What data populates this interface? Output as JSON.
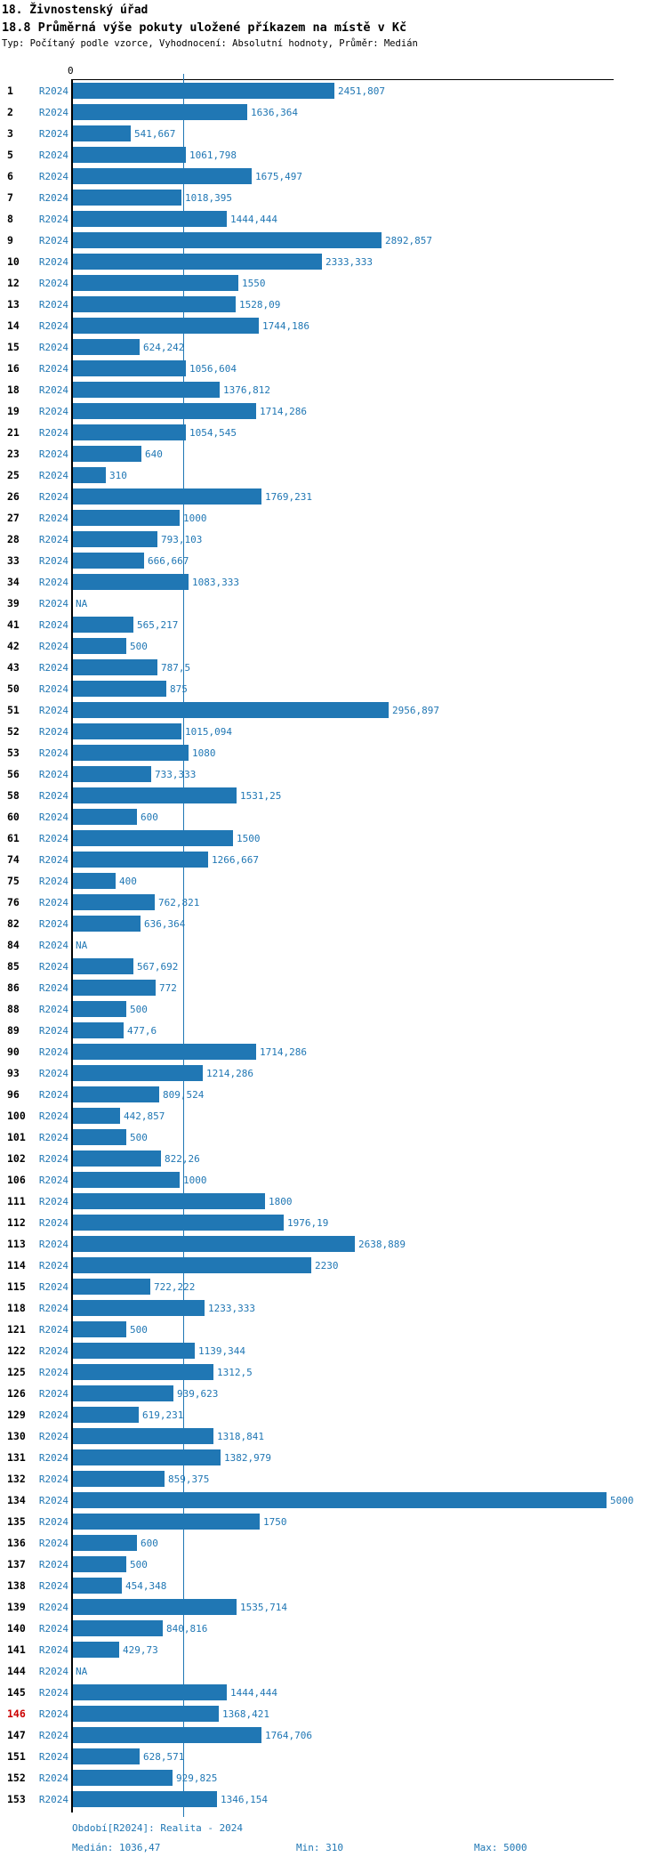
{
  "header": {
    "title": "18. Živnostenský úřad",
    "subtitle": "18.8 Průměrná výše pokuty uložené příkazem na místě v Kč",
    "meta": "Typ: Počítaný podle vzorce, Vyhodnocení: Absolutní hodnoty, Průměr: Medián"
  },
  "chart_data": {
    "type": "bar",
    "orientation": "horizontal",
    "title": "18.8 Průměrná výše pokuty uložené příkazem na místě v Kč",
    "series_label": "R2024",
    "axis_zero_label": "0",
    "na_label": "NA",
    "xlim": [
      0,
      5000
    ],
    "median": 1036.47,
    "min": 310,
    "max": 5000,
    "period": "Realita - 2024",
    "bar_color": "#2077b4",
    "highlight_color": "#cc0000",
    "rows": [
      {
        "id": "1",
        "value": 2451.807,
        "label": "2451,807"
      },
      {
        "id": "2",
        "value": 1636.364,
        "label": "1636,364"
      },
      {
        "id": "3",
        "value": 541.667,
        "label": "541,667"
      },
      {
        "id": "5",
        "value": 1061.798,
        "label": "1061,798"
      },
      {
        "id": "6",
        "value": 1675.497,
        "label": "1675,497"
      },
      {
        "id": "7",
        "value": 1018.395,
        "label": "1018,395"
      },
      {
        "id": "8",
        "value": 1444.444,
        "label": "1444,444"
      },
      {
        "id": "9",
        "value": 2892.857,
        "label": "2892,857"
      },
      {
        "id": "10",
        "value": 2333.333,
        "label": "2333,333"
      },
      {
        "id": "12",
        "value": 1550,
        "label": "1550"
      },
      {
        "id": "13",
        "value": 1528.09,
        "label": "1528,09"
      },
      {
        "id": "14",
        "value": 1744.186,
        "label": "1744,186"
      },
      {
        "id": "15",
        "value": 624.242,
        "label": "624,242"
      },
      {
        "id": "16",
        "value": 1056.604,
        "label": "1056,604"
      },
      {
        "id": "18",
        "value": 1376.812,
        "label": "1376,812"
      },
      {
        "id": "19",
        "value": 1714.286,
        "label": "1714,286"
      },
      {
        "id": "21",
        "value": 1054.545,
        "label": "1054,545"
      },
      {
        "id": "23",
        "value": 640,
        "label": "640"
      },
      {
        "id": "25",
        "value": 310,
        "label": "310"
      },
      {
        "id": "26",
        "value": 1769.231,
        "label": "1769,231"
      },
      {
        "id": "27",
        "value": 1000,
        "label": "1000"
      },
      {
        "id": "28",
        "value": 793.103,
        "label": "793,103"
      },
      {
        "id": "33",
        "value": 666.667,
        "label": "666,667"
      },
      {
        "id": "34",
        "value": 1083.333,
        "label": "1083,333"
      },
      {
        "id": "39",
        "value": null,
        "label": "NA"
      },
      {
        "id": "41",
        "value": 565.217,
        "label": "565,217"
      },
      {
        "id": "42",
        "value": 500,
        "label": "500"
      },
      {
        "id": "43",
        "value": 787.5,
        "label": "787,5"
      },
      {
        "id": "50",
        "value": 875,
        "label": "875"
      },
      {
        "id": "51",
        "value": 2956.897,
        "label": "2956,897"
      },
      {
        "id": "52",
        "value": 1015.094,
        "label": "1015,094"
      },
      {
        "id": "53",
        "value": 1080,
        "label": "1080"
      },
      {
        "id": "56",
        "value": 733.333,
        "label": "733,333"
      },
      {
        "id": "58",
        "value": 1531.25,
        "label": "1531,25"
      },
      {
        "id": "60",
        "value": 600,
        "label": "600"
      },
      {
        "id": "61",
        "value": 1500,
        "label": "1500"
      },
      {
        "id": "74",
        "value": 1266.667,
        "label": "1266,667"
      },
      {
        "id": "75",
        "value": 400,
        "label": "400"
      },
      {
        "id": "76",
        "value": 762.821,
        "label": "762,821"
      },
      {
        "id": "82",
        "value": 636.364,
        "label": "636,364"
      },
      {
        "id": "84",
        "value": null,
        "label": "NA"
      },
      {
        "id": "85",
        "value": 567.692,
        "label": "567,692"
      },
      {
        "id": "86",
        "value": 772,
        "label": "772"
      },
      {
        "id": "88",
        "value": 500,
        "label": "500"
      },
      {
        "id": "89",
        "value": 477.6,
        "label": "477,6"
      },
      {
        "id": "90",
        "value": 1714.286,
        "label": "1714,286"
      },
      {
        "id": "93",
        "value": 1214.286,
        "label": "1214,286"
      },
      {
        "id": "96",
        "value": 809.524,
        "label": "809,524"
      },
      {
        "id": "100",
        "value": 442.857,
        "label": "442,857"
      },
      {
        "id": "101",
        "value": 500,
        "label": "500"
      },
      {
        "id": "102",
        "value": 822.26,
        "label": "822,26"
      },
      {
        "id": "106",
        "value": 1000,
        "label": "1000"
      },
      {
        "id": "111",
        "value": 1800,
        "label": "1800"
      },
      {
        "id": "112",
        "value": 1976.19,
        "label": "1976,19"
      },
      {
        "id": "113",
        "value": 2638.889,
        "label": "2638,889"
      },
      {
        "id": "114",
        "value": 2230,
        "label": "2230"
      },
      {
        "id": "115",
        "value": 722.222,
        "label": "722,222"
      },
      {
        "id": "118",
        "value": 1233.333,
        "label": "1233,333"
      },
      {
        "id": "121",
        "value": 500,
        "label": "500"
      },
      {
        "id": "122",
        "value": 1139.344,
        "label": "1139,344"
      },
      {
        "id": "125",
        "value": 1312.5,
        "label": "1312,5"
      },
      {
        "id": "126",
        "value": 939.623,
        "label": "939,623"
      },
      {
        "id": "129",
        "value": 619.231,
        "label": "619,231"
      },
      {
        "id": "130",
        "value": 1318.841,
        "label": "1318,841"
      },
      {
        "id": "131",
        "value": 1382.979,
        "label": "1382,979"
      },
      {
        "id": "132",
        "value": 859.375,
        "label": "859,375"
      },
      {
        "id": "134",
        "value": 5000,
        "label": "5000"
      },
      {
        "id": "135",
        "value": 1750,
        "label": "1750"
      },
      {
        "id": "136",
        "value": 600,
        "label": "600"
      },
      {
        "id": "137",
        "value": 500,
        "label": "500"
      },
      {
        "id": "138",
        "value": 454.348,
        "label": "454,348"
      },
      {
        "id": "139",
        "value": 1535.714,
        "label": "1535,714"
      },
      {
        "id": "140",
        "value": 840.816,
        "label": "840,816"
      },
      {
        "id": "141",
        "value": 429.73,
        "label": "429,73"
      },
      {
        "id": "144",
        "value": null,
        "label": "NA"
      },
      {
        "id": "145",
        "value": 1444.444,
        "label": "1444,444"
      },
      {
        "id": "146",
        "value": 1368.421,
        "label": "1368,421",
        "highlight": true
      },
      {
        "id": "147",
        "value": 1764.706,
        "label": "1764,706"
      },
      {
        "id": "151",
        "value": 628.571,
        "label": "628,571"
      },
      {
        "id": "152",
        "value": 929.825,
        "label": "929,825"
      },
      {
        "id": "153",
        "value": 1346.154,
        "label": "1346,154"
      }
    ]
  },
  "footer": {
    "period": "Období[R2024]: Realita - 2024",
    "median": "Medián: 1036,47",
    "min": "Min: 310",
    "max": "Max: 5000"
  }
}
